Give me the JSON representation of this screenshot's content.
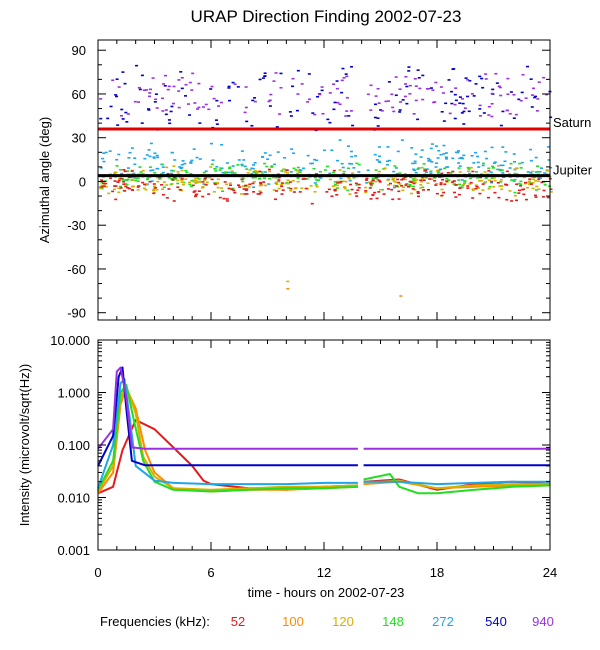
{
  "title": "URAP Direction Finding  2002-07-23",
  "xlabel": "time - hours on 2002-07-23",
  "legend_label": "Frequencies (kHz):",
  "colors": {
    "52": "#e41a1c",
    "100": "#ff8c00",
    "120": "#d4b000",
    "148": "#22dd22",
    "272": "#1ea7e8",
    "540": "#0000cc",
    "940": "#9b30e0",
    "saturn_line": "#e00000",
    "jupiter_line": "#000000"
  },
  "chart_data": [
    {
      "type": "scatter",
      "panel": "top",
      "title": "URAP Direction Finding  2002-07-23",
      "ylabel": "Azimuthal angle (deg)",
      "xlabel": "",
      "xlim": [
        0,
        24
      ],
      "ylim": [
        -95,
        97
      ],
      "x_ticks": [
        0,
        6,
        12,
        18,
        24
      ],
      "y_ticks": [
        90,
        60,
        30,
        0,
        -30,
        -60,
        -90
      ],
      "reference_lines": [
        {
          "name": "Saturn",
          "y": 36,
          "color": "#e00000"
        },
        {
          "name": "Jupiter",
          "y": 4,
          "color": "#000000"
        }
      ],
      "data_gap_hours": [
        13.8,
        14.1
      ],
      "series": [
        {
          "name": "540",
          "description": "scattered points",
          "y_range": [
            35,
            80
          ]
        },
        {
          "name": "940",
          "description": "scattered points",
          "y_range": [
            45,
            75
          ]
        },
        {
          "name": "272",
          "description": "cluster near Jupiter",
          "y_range": [
            -5,
            30
          ]
        },
        {
          "name": "148",
          "description": "cluster near Jupiter",
          "y_range": [
            -8,
            15
          ]
        },
        {
          "name": "120",
          "description": "cluster near Jupiter",
          "y_range": [
            -10,
            12
          ]
        },
        {
          "name": "52",
          "description": "cluster near Jupiter",
          "y_range": [
            -15,
            10
          ]
        }
      ],
      "outliers": [
        {
          "x": 10.0,
          "y": -68,
          "series": "120"
        },
        {
          "x": 10.0,
          "y": -73,
          "series": "100"
        },
        {
          "x": 16.0,
          "y": -78,
          "series": "100"
        }
      ]
    },
    {
      "type": "line",
      "panel": "bottom",
      "ylabel": "Intensity (microvolt/sqrt(Hz))",
      "xlabel": "time - hours on 2002-07-23",
      "yscale": "log",
      "ylim": [
        0.001,
        10
      ],
      "y_tick_labels": [
        "10.000",
        "1.000",
        "0.100",
        "0.010",
        "0.001"
      ],
      "x_tick_labels": [
        "0",
        "6",
        "12",
        "18",
        "24"
      ],
      "xlim": [
        0,
        24
      ],
      "data_gap_hours": [
        13.8,
        14.1
      ],
      "series": [
        {
          "name": "52",
          "x": [
            0,
            0.8,
            1.3,
            2.0,
            3.0,
            4.0,
            5.0,
            5.6,
            6.0,
            8,
            10,
            12,
            13.8,
            14.1,
            16,
            18,
            20,
            22,
            24
          ],
          "y": [
            0.012,
            0.016,
            0.08,
            0.3,
            0.2,
            0.09,
            0.04,
            0.021,
            0.018,
            0.015,
            0.014,
            0.016,
            0.017,
            0.02,
            0.022,
            0.014,
            0.018,
            0.02,
            0.018
          ]
        },
        {
          "name": "100",
          "x": [
            0,
            0.8,
            1.2,
            1.5,
            2.0,
            2.5,
            3.0,
            4,
            6,
            8,
            10,
            12,
            13.8,
            14.1,
            16,
            18,
            20,
            22,
            24
          ],
          "y": [
            0.012,
            0.03,
            0.6,
            1.2,
            0.5,
            0.08,
            0.03,
            0.015,
            0.013,
            0.014,
            0.014,
            0.015,
            0.016,
            0.018,
            0.02,
            0.015,
            0.016,
            0.017,
            0.017
          ]
        },
        {
          "name": "120",
          "x": [
            0,
            0.8,
            1.2,
            1.5,
            2.0,
            2.4,
            3.0,
            4,
            6,
            8,
            10,
            12,
            13.8,
            14.1,
            16,
            18,
            20,
            22,
            24
          ],
          "y": [
            0.013,
            0.04,
            0.8,
            1.3,
            0.4,
            0.06,
            0.025,
            0.015,
            0.014,
            0.015,
            0.016,
            0.016,
            0.017,
            0.019,
            0.021,
            0.015,
            0.017,
            0.018,
            0.018
          ]
        },
        {
          "name": "148",
          "x": [
            0,
            0.8,
            1.2,
            1.5,
            1.9,
            2.4,
            3.0,
            4,
            6,
            8,
            10,
            12,
            13.8,
            14.1,
            15.5,
            16,
            17,
            18,
            20,
            22,
            24
          ],
          "y": [
            0.014,
            0.05,
            1.0,
            1.4,
            0.3,
            0.05,
            0.02,
            0.014,
            0.013,
            0.014,
            0.015,
            0.015,
            0.016,
            0.022,
            0.028,
            0.016,
            0.012,
            0.012,
            0.014,
            0.016,
            0.017
          ]
        },
        {
          "name": "272",
          "x": [
            0,
            0.8,
            1.2,
            1.4,
            1.7,
            2.0,
            3.0,
            4,
            6,
            8,
            10,
            12,
            13.8,
            14.1,
            16,
            18,
            20,
            22,
            24
          ],
          "y": [
            0.015,
            0.1,
            1.5,
            1.8,
            0.3,
            0.04,
            0.021,
            0.019,
            0.018,
            0.018,
            0.018,
            0.019,
            0.019,
            0.02,
            0.02,
            0.018,
            0.019,
            0.02,
            0.02
          ]
        },
        {
          "name": "540",
          "x": [
            0,
            0.8,
            1.1,
            1.3,
            1.5,
            1.8,
            2.5,
            4,
            6,
            8,
            10,
            12,
            13.8,
            14.1,
            16,
            18,
            20,
            22,
            24
          ],
          "y": [
            0.04,
            0.15,
            2.0,
            3.0,
            0.5,
            0.05,
            0.041,
            0.041,
            0.041,
            0.041,
            0.041,
            0.041,
            0.041,
            0.041,
            0.041,
            0.041,
            0.041,
            0.041,
            0.041
          ]
        },
        {
          "name": "940",
          "x": [
            0,
            0.8,
            1.0,
            1.2,
            1.5,
            1.8,
            2.5,
            4,
            6,
            8,
            10,
            12,
            13.8,
            14.1,
            16,
            18,
            20,
            22,
            24
          ],
          "y": [
            0.085,
            0.2,
            2.5,
            3.0,
            0.8,
            0.09,
            0.085,
            0.085,
            0.085,
            0.085,
            0.085,
            0.085,
            0.085,
            0.085,
            0.085,
            0.085,
            0.085,
            0.085,
            0.085
          ]
        }
      ]
    }
  ],
  "legend": [
    {
      "label": "52",
      "series": "52"
    },
    {
      "label": "100",
      "series": "100"
    },
    {
      "label": "120",
      "series": "120"
    },
    {
      "label": "148",
      "series": "148"
    },
    {
      "label": "272",
      "series": "272"
    },
    {
      "label": "540",
      "series": "540"
    },
    {
      "label": "940",
      "series": "940"
    }
  ]
}
